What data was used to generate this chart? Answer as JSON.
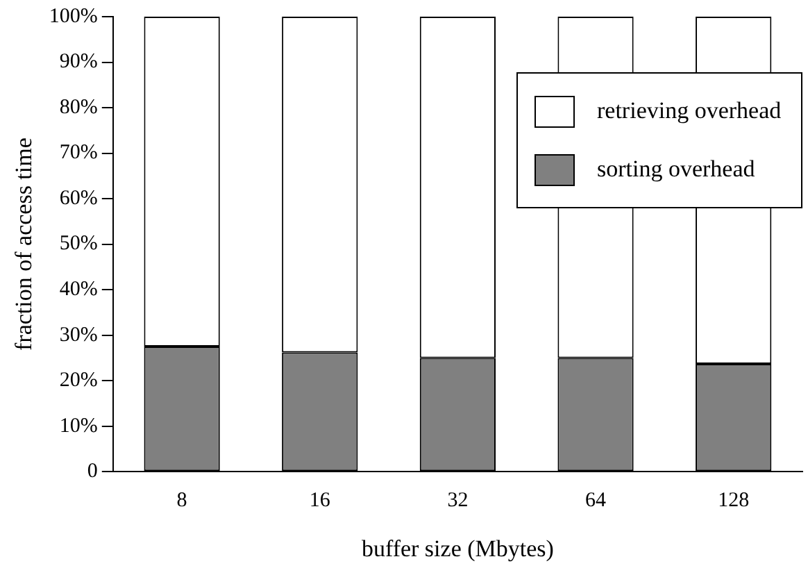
{
  "chart_data": {
    "type": "bar",
    "stacked": true,
    "xlabel": "buffer size (Mbytes)",
    "ylabel": "fraction of access time",
    "categories": [
      "8",
      "16",
      "32",
      "64",
      "128"
    ],
    "series": [
      {
        "name": "sorting overhead",
        "color": "#808080",
        "values": [
          27.5,
          26.2,
          25,
          25,
          23.7
        ]
      },
      {
        "name": "retrieving overhead",
        "color": "#ffffff",
        "values": [
          72.5,
          73.8,
          75,
          75,
          76.3
        ]
      }
    ],
    "ylim": [
      0,
      100
    ],
    "yticks": [
      0,
      {
        "value": 10,
        "label": "10%"
      },
      {
        "value": 20,
        "label": "20%"
      },
      {
        "value": 30,
        "label": "30%"
      },
      {
        "value": 40,
        "label": "40%"
      },
      {
        "value": 50,
        "label": "50%"
      },
      {
        "value": 60,
        "label": "60%"
      },
      {
        "value": 70,
        "label": "70%"
      },
      {
        "value": 80,
        "label": "80%"
      },
      {
        "value": 90,
        "label": "90%"
      },
      {
        "value": 100,
        "label": "100%"
      }
    ],
    "grid": false,
    "legend": "top right"
  }
}
